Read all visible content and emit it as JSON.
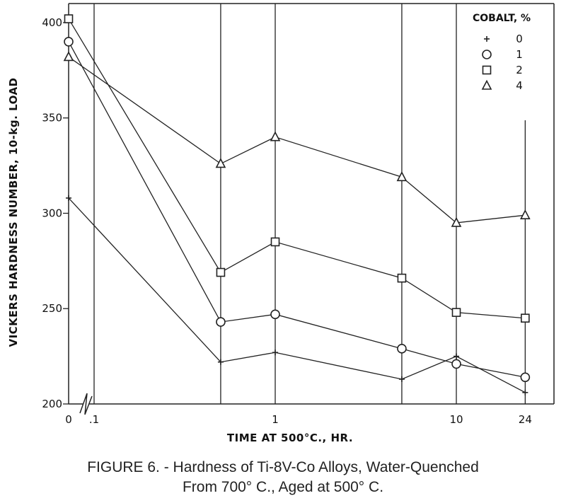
{
  "caption": {
    "line1": "FIGURE 6. - Hardness of Ti-8V-Co Alloys, Water-Quenched",
    "line2": "From 700° C., Aged at 500° C."
  },
  "chart_data": {
    "type": "line",
    "title": "",
    "xlabel": "TIME AT 500°C., HR.",
    "ylabel": "VICKERS HARDNESS NUMBER, 10-kg. LOAD",
    "x_scale": "log (with broken axis at 0)",
    "x_tick_labels": [
      "0",
      ".1",
      "1",
      "10",
      "24"
    ],
    "y_ticks": [
      200,
      250,
      300,
      350,
      400
    ],
    "ylim": [
      200,
      410
    ],
    "legend_title": "COBALT, %",
    "legend_position": "top-right",
    "grid": "vertical lines",
    "x": [
      "0",
      "0.5",
      "1",
      "5",
      "10",
      "24"
    ],
    "series": [
      {
        "name": "0",
        "marker": "plus",
        "values": [
          308,
          222,
          227,
          213,
          225,
          206
        ]
      },
      {
        "name": "1",
        "marker": "circle",
        "values": [
          390,
          243,
          247,
          229,
          221,
          214
        ]
      },
      {
        "name": "2",
        "marker": "square",
        "values": [
          402,
          269,
          285,
          266,
          248,
          245
        ]
      },
      {
        "name": "4",
        "marker": "triangle",
        "values": [
          382,
          326,
          340,
          319,
          295,
          299
        ]
      }
    ]
  }
}
